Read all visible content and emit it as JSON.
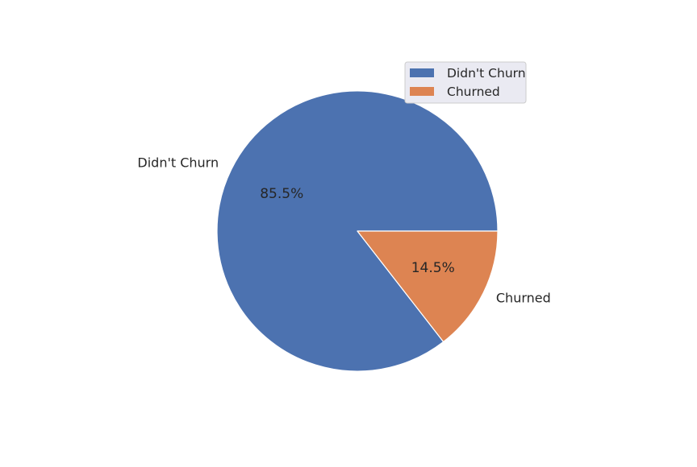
{
  "chart_data": {
    "type": "pie",
    "title": "",
    "slices": [
      {
        "label": "Didn't Churn",
        "value": 85.5,
        "pct_label": "85.5%",
        "color": "#4c72b0"
      },
      {
        "label": "Churned",
        "value": 14.5,
        "pct_label": "14.5%",
        "color": "#dd8452"
      }
    ],
    "start_angle_deg": 0,
    "direction": "counterclockwise",
    "edge_color": "#ffffff",
    "legend": {
      "placement": "upper-right",
      "background": "#eaeaf2",
      "border": "#cccccc",
      "entries": [
        "Didn't Churn",
        "Churned"
      ]
    }
  }
}
